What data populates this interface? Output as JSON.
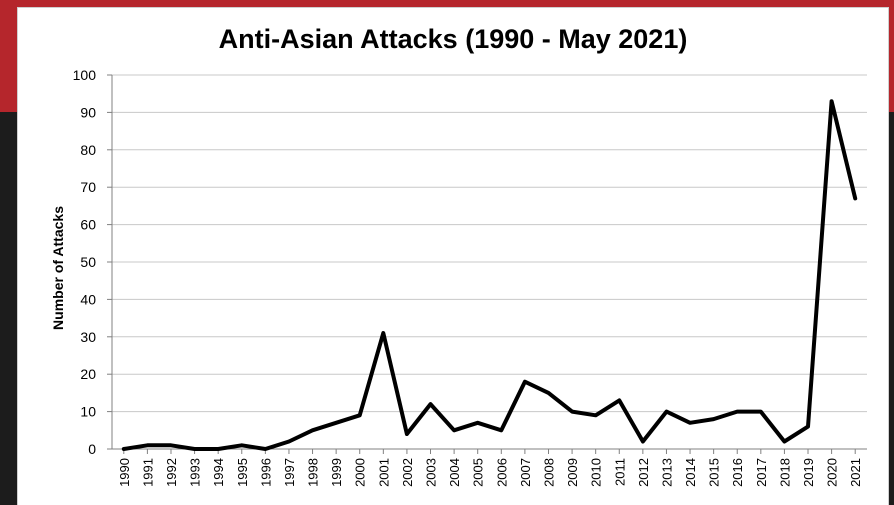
{
  "chart_data": {
    "type": "line",
    "title": "Anti-Asian Attacks (1990 - May 2021)",
    "xlabel": "",
    "ylabel": "Number of Attacks",
    "ylim": [
      0,
      100
    ],
    "yticks": [
      "0",
      "10",
      "20",
      "30",
      "40",
      "50",
      "60",
      "70",
      "80",
      "90",
      "100"
    ],
    "grid": true,
    "legend": "none",
    "line_color": "#000000",
    "categories": [
      "1990",
      "1991",
      "1992",
      "1993",
      "1994",
      "1995",
      "1996",
      "1997",
      "1998",
      "1999",
      "2000",
      "2001",
      "2002",
      "2003",
      "2004",
      "2005",
      "2006",
      "2007",
      "2008",
      "2009",
      "2010",
      "2011",
      "2012",
      "2013",
      "2014",
      "2015",
      "2016",
      "2017",
      "2018",
      "2019",
      "2020",
      "2021"
    ],
    "series": [
      {
        "values": [
          0,
          1,
          1,
          0,
          0,
          1,
          0,
          2,
          5,
          7,
          9,
          31,
          4,
          12,
          5,
          7,
          5,
          18,
          15,
          10,
          9,
          13,
          2,
          10,
          7,
          8,
          10,
          10,
          2,
          6,
          93,
          67
        ]
      }
    ]
  },
  "colors": {
    "header_band": "#b5262c",
    "background": "#1c1c1c",
    "plot_background": "#ffffff",
    "gridline": "#c8c8c8"
  }
}
